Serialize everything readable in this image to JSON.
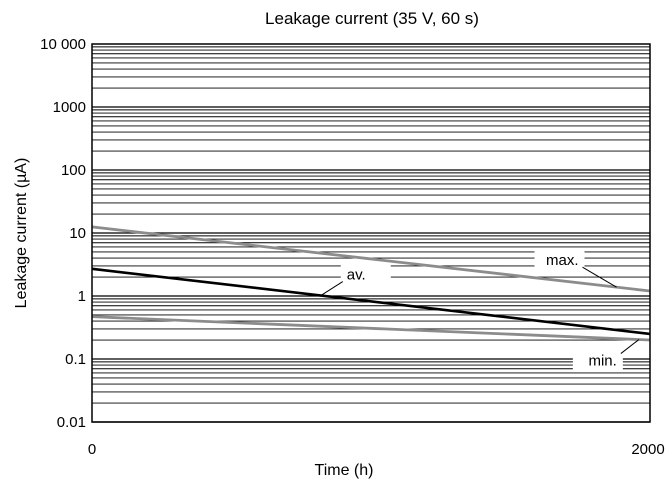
{
  "chart_data": {
    "type": "line",
    "title": "Leakage current (35 V, 60 s)",
    "xlabel": "Time (h)",
    "ylabel": "Leakage current (µA)",
    "xlim": [
      0,
      2000
    ],
    "ylim": [
      0.01,
      10000
    ],
    "yscale": "log",
    "grid": true,
    "x_ticks": [
      {
        "value": 0,
        "label": "0"
      },
      {
        "value": 2000,
        "label": "2000"
      }
    ],
    "y_ticks": [
      {
        "value": 0.01,
        "label": "0.01"
      },
      {
        "value": 0.1,
        "label": "0.1"
      },
      {
        "value": 1,
        "label": "1"
      },
      {
        "value": 10,
        "label": "10"
      },
      {
        "value": 100,
        "label": "100"
      },
      {
        "value": 1000,
        "label": "1000"
      },
      {
        "value": 10000,
        "label": "10 000"
      }
    ],
    "series": [
      {
        "name": "max.",
        "color": "#8c8c8c",
        "x": [
          0,
          2000
        ],
        "y": [
          12.5,
          1.2
        ]
      },
      {
        "name": "av.",
        "color": "#000000",
        "x": [
          0,
          2000
        ],
        "y": [
          2.7,
          0.25
        ]
      },
      {
        "name": "min.",
        "color": "#8c8c8c",
        "x": [
          0,
          2000
        ],
        "y": [
          0.47,
          0.2
        ]
      }
    ]
  }
}
